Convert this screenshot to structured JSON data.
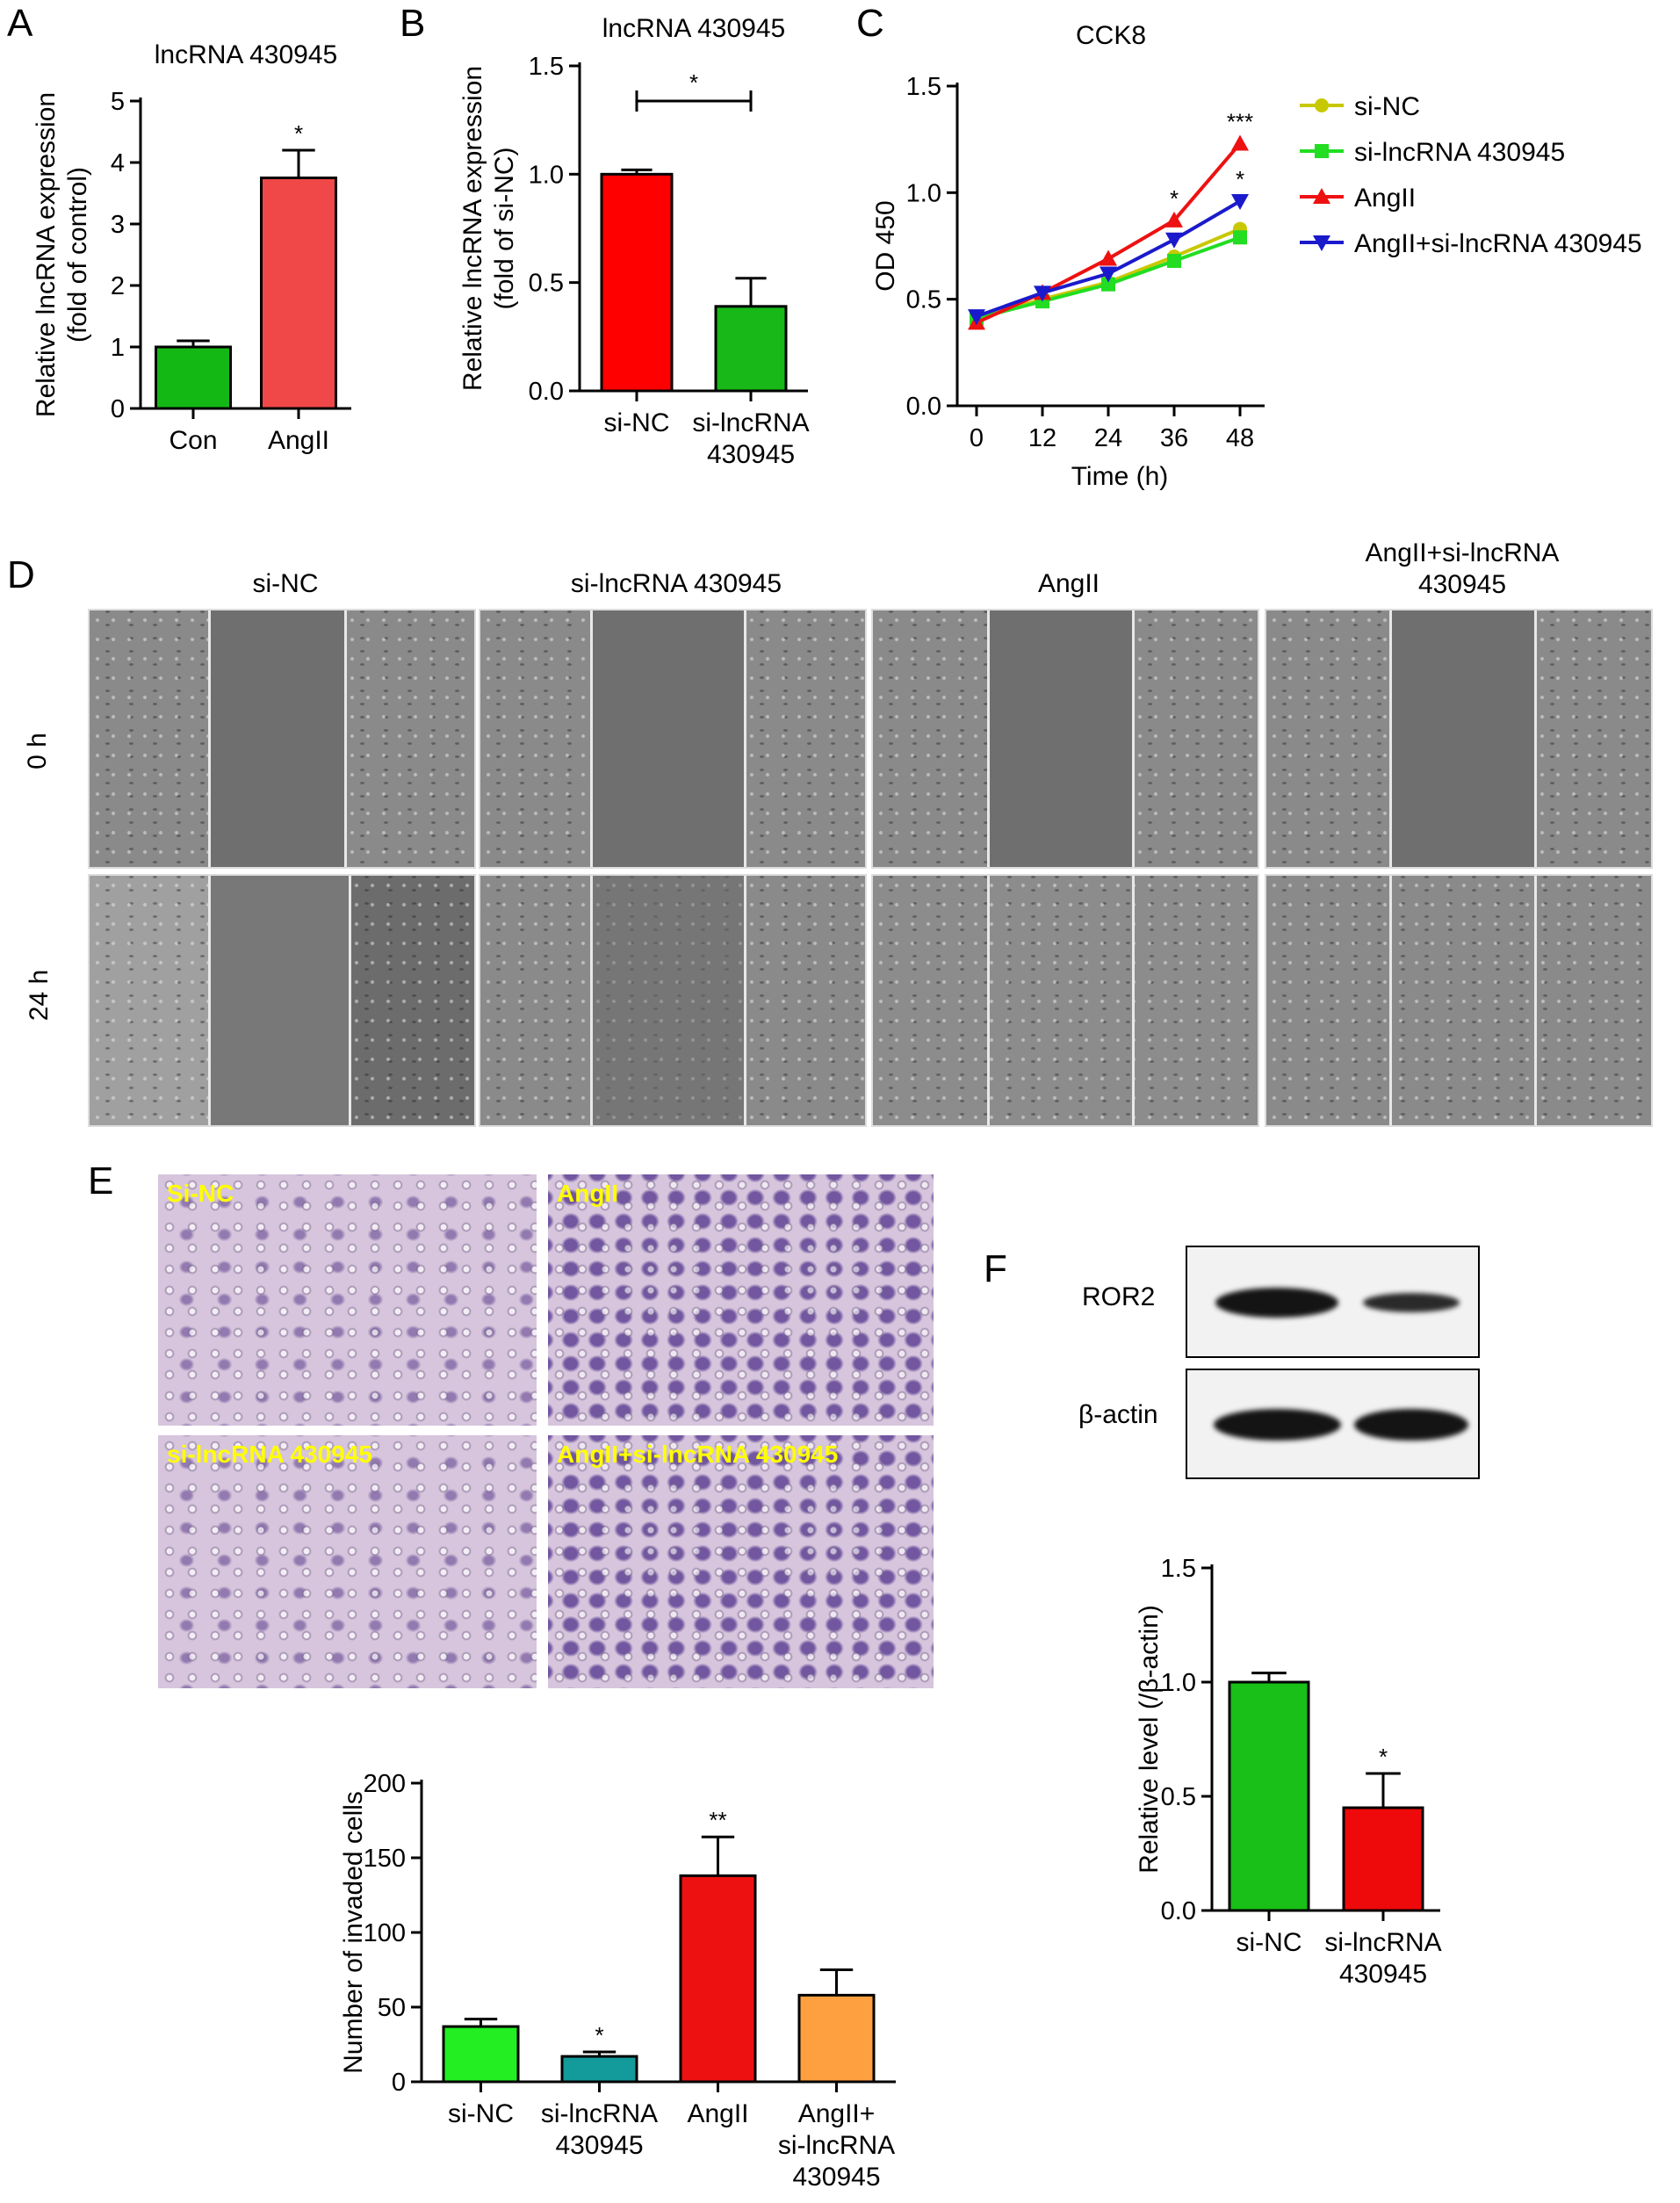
{
  "panel_letters": {
    "A": "A",
    "B": "B",
    "C": "C",
    "D": "D",
    "E": "E",
    "F": "F"
  },
  "chart_data": [
    {
      "id": "A",
      "type": "bar",
      "title": "lncRNA 430945",
      "ylabel": "Relative lncRNA expression (fold of control)",
      "ylabel_lines": [
        "Relative lncRNA expression",
        "(fold of control)"
      ],
      "categories": [
        "Con",
        "AngII"
      ],
      "category_lines": [
        [
          "Con"
        ],
        [
          "AngII"
        ]
      ],
      "values": [
        1.0,
        3.75
      ],
      "errors": [
        0.1,
        0.45
      ],
      "colors": [
        "#14b814",
        "#f04848"
      ],
      "significance": [
        "",
        "*"
      ],
      "ylim": [
        0,
        5
      ],
      "yticks": [
        0,
        1,
        2,
        3,
        4,
        5
      ],
      "ytick_labels": [
        "0",
        "1",
        "2",
        "3",
        "4",
        "5"
      ]
    },
    {
      "id": "B",
      "type": "bar",
      "title": "lncRNA 430945",
      "ylabel": "Relative lncRNA expression (fold of si-NC)",
      "ylabel_lines": [
        "Relative lncRNA expression",
        "(fold of si-NC)"
      ],
      "categories": [
        "si-NC",
        "si-lncRNA 430945"
      ],
      "category_lines": [
        [
          "si-NC"
        ],
        [
          "si-lncRNA",
          "430945"
        ]
      ],
      "values": [
        1.0,
        0.39
      ],
      "errors": [
        0.02,
        0.13
      ],
      "colors": [
        "#ff0000",
        "#18b818"
      ],
      "significance_bracket": "*",
      "ylim": [
        0,
        1.5
      ],
      "yticks": [
        0,
        0.5,
        1.0,
        1.5
      ],
      "ytick_labels": [
        "0.0",
        "0.5",
        "1.0",
        "1.5"
      ]
    },
    {
      "id": "C",
      "type": "line",
      "title": "CCK8",
      "xlabel": "Time (h)",
      "ylabel": "OD 450",
      "x": [
        0,
        12,
        24,
        36,
        48
      ],
      "xtick_labels": [
        "0",
        "12",
        "24",
        "36",
        "48"
      ],
      "ylim": [
        0,
        1.5
      ],
      "yticks": [
        0,
        0.5,
        1.0,
        1.5
      ],
      "ytick_labels": [
        "0.0",
        "0.5",
        "1.0",
        "1.5"
      ],
      "series": [
        {
          "name": "si-NC",
          "values": [
            0.41,
            0.5,
            0.58,
            0.7,
            0.83
          ],
          "color": "#c8c800",
          "marker": "circle"
        },
        {
          "name": "si-lncRNA 430945",
          "values": [
            0.41,
            0.49,
            0.57,
            0.68,
            0.79
          ],
          "color": "#22dd22",
          "marker": "square"
        },
        {
          "name": "AngII",
          "values": [
            0.39,
            0.53,
            0.69,
            0.87,
            1.23
          ],
          "color": "#ee1111",
          "marker": "triangle-up"
        },
        {
          "name": "AngII+si-lncRNA 430945",
          "values": [
            0.42,
            0.53,
            0.62,
            0.78,
            0.96
          ],
          "color": "#1a1acc",
          "marker": "triangle-down"
        }
      ],
      "annotations": [
        {
          "x": 36,
          "y": 0.87,
          "text": "*"
        },
        {
          "x": 48,
          "y": 1.23,
          "text": "***"
        },
        {
          "x": 48,
          "y": 0.96,
          "text": "*"
        }
      ],
      "legend": "right"
    },
    {
      "id": "E",
      "type": "bar",
      "ylabel": "Number of invaded cells",
      "categories": [
        "si-NC",
        "si-lncRNA 430945",
        "AngII",
        "AngII+ si-lncRNA 430945"
      ],
      "category_lines": [
        [
          "si-NC"
        ],
        [
          "si-lncRNA",
          "430945"
        ],
        [
          "AngII"
        ],
        [
          "AngII+",
          "si-lncRNA",
          "430945"
        ]
      ],
      "values": [
        37,
        17,
        138,
        58
      ],
      "errors": [
        5,
        3,
        26,
        17
      ],
      "colors": [
        "#22ee22",
        "#139a9a",
        "#ee1111",
        "#ffa040"
      ],
      "significance": [
        "",
        "*",
        "**",
        ""
      ],
      "ylim": [
        0,
        200
      ],
      "yticks": [
        0,
        50,
        100,
        150,
        200
      ],
      "ytick_labels": [
        "0",
        "50",
        "100",
        "150",
        "200"
      ]
    },
    {
      "id": "F",
      "type": "bar",
      "ylabel": "Relative level (/β-actin)",
      "categories": [
        "si-NC",
        "si-lncRNA 430945"
      ],
      "category_lines": [
        [
          "si-NC"
        ],
        [
          "si-lncRNA",
          "430945"
        ]
      ],
      "values": [
        1.0,
        0.45
      ],
      "errors": [
        0.04,
        0.15
      ],
      "colors": [
        "#18c018",
        "#ee0a0a"
      ],
      "significance": [
        "",
        "*"
      ],
      "ylim": [
        0,
        1.5
      ],
      "yticks": [
        0,
        0.5,
        1.0,
        1.5
      ],
      "ytick_labels": [
        "0.0",
        "0.5",
        "1.0",
        "1.5"
      ]
    }
  ],
  "panel_d": {
    "columns": [
      "si-NC",
      "si-lncRNA 430945",
      "AngII",
      "AngII+si-lncRNA 430945"
    ],
    "column_lines": [
      [
        "si-NC"
      ],
      [
        "si-lncRNA 430945"
      ],
      [
        "AngII"
      ],
      [
        "AngII+si-lncRNA",
        "430945"
      ]
    ],
    "rows": [
      "0 h",
      "24 h"
    ]
  },
  "panel_e": {
    "images": [
      "Si-NC",
      "AngII",
      "si-lncRNA 430945",
      "AngII+si-lncRNA  430945"
    ]
  },
  "panel_f": {
    "blot_labels": [
      "ROR2",
      "β-actin"
    ]
  }
}
